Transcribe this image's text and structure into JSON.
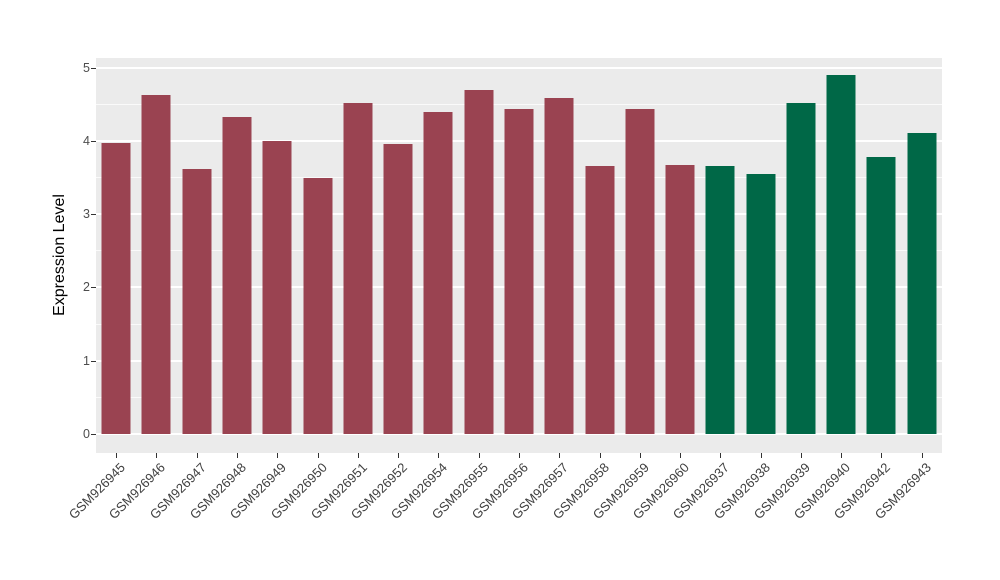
{
  "chart_data": {
    "type": "bar",
    "title": "",
    "xlabel": "",
    "ylabel": "Expression Level",
    "legend": "none",
    "grid": true,
    "panel_background": "#EBEBEB",
    "gridline_color": "#FFFFFF",
    "ylim": [
      -0.26,
      5.14
    ],
    "yticks": [
      0,
      1,
      2,
      3,
      4,
      5
    ],
    "yticks_minor": [
      0.5,
      1.5,
      2.5,
      3.5,
      4.5
    ],
    "palette": {
      "red": "#9A4351",
      "green": "#006847"
    },
    "categories": [
      "GSM926945",
      "GSM926946",
      "GSM926947",
      "GSM926948",
      "GSM926949",
      "GSM926950",
      "GSM926951",
      "GSM926952",
      "GSM926954",
      "GSM926955",
      "GSM926956",
      "GSM926957",
      "GSM926958",
      "GSM926959",
      "GSM926960",
      "GSM926937",
      "GSM926938",
      "GSM926939",
      "GSM926940",
      "GSM926942",
      "GSM926943"
    ],
    "values": [
      3.98,
      4.63,
      3.62,
      4.34,
      4.0,
      3.5,
      4.52,
      3.97,
      4.4,
      4.7,
      4.44,
      4.59,
      3.66,
      4.44,
      3.68,
      3.67,
      3.56,
      4.53,
      4.91,
      3.79,
      4.12
    ],
    "groups": [
      "red",
      "red",
      "red",
      "red",
      "red",
      "red",
      "red",
      "red",
      "red",
      "red",
      "red",
      "red",
      "red",
      "red",
      "red",
      "green",
      "green",
      "green",
      "green",
      "green",
      "green"
    ]
  }
}
